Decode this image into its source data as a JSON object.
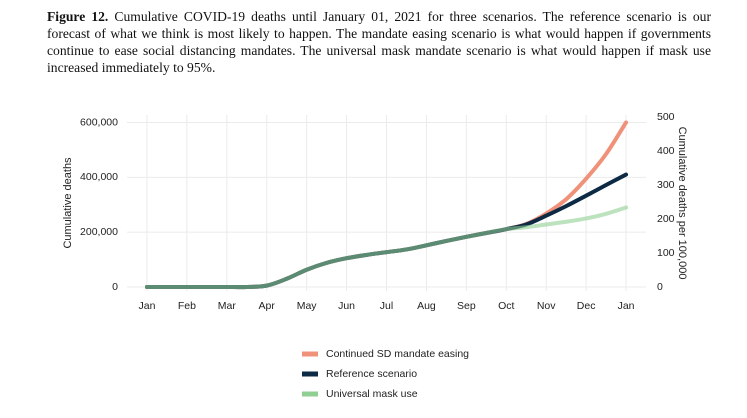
{
  "caption": {
    "label": "Figure 12.",
    "text": "Cumulative COVID-19 deaths until January 01, 2021 for three scenarios. The reference scenario is our forecast of what we think is most likely to happen. The mandate easing scenario is what would happen if governments continue to ease social distancing mandates. The universal mask mandate scenario is what would happen if mask use increased immediately to 95%."
  },
  "chart_data": {
    "type": "line",
    "ylabel": "Cumulative deaths",
    "y2label": "Cumulative deaths per 100,000",
    "x": [
      0,
      0.5,
      1,
      1.5,
      2,
      2.5,
      3,
      3.5,
      4,
      4.5,
      5,
      5.5,
      6,
      6.5,
      7,
      7.5,
      8,
      8.5,
      9,
      9.5,
      10,
      10.5,
      11,
      11.5,
      12
    ],
    "xlim": [
      -0.5,
      12.5
    ],
    "xticks": [
      {
        "value": 0,
        "label": "Jan"
      },
      {
        "value": 1,
        "label": "Feb"
      },
      {
        "value": 2,
        "label": "Mar"
      },
      {
        "value": 3,
        "label": "Apr"
      },
      {
        "value": 4,
        "label": "May"
      },
      {
        "value": 5,
        "label": "Jun"
      },
      {
        "value": 6,
        "label": "Jul"
      },
      {
        "value": 7,
        "label": "Aug"
      },
      {
        "value": 8,
        "label": "Sep"
      },
      {
        "value": 9,
        "label": "Oct"
      },
      {
        "value": 10,
        "label": "Nov"
      },
      {
        "value": 11,
        "label": "Dec"
      },
      {
        "value": 12,
        "label": "Jan"
      }
    ],
    "ylim": [
      0,
      620000
    ],
    "yticks": [
      0,
      {
        "value": 200000,
        "label": "200,000"
      },
      {
        "value": 400000,
        "label": "400,000"
      },
      {
        "value": 600000,
        "label": "600,000"
      }
    ],
    "y2lim": [
      0,
      500
    ],
    "y2ticks": [
      0,
      100,
      200,
      300,
      400,
      500
    ],
    "grid": true,
    "series": [
      {
        "name": "Continued SD mandate easing",
        "color": "#f0917a",
        "values": [
          0,
          0,
          0,
          0,
          0,
          100,
          5000,
          30000,
          63000,
          88000,
          105000,
          117000,
          127000,
          137000,
          152000,
          168000,
          183000,
          197000,
          211000,
          230000,
          268000,
          320000,
          395000,
          485000,
          600000
        ]
      },
      {
        "name": "Reference scenario",
        "color": "#0d2a45",
        "values": [
          0,
          0,
          0,
          0,
          0,
          100,
          5000,
          30000,
          63000,
          88000,
          105000,
          117000,
          127000,
          137000,
          152000,
          168000,
          183000,
          197000,
          211000,
          228000,
          260000,
          295000,
          333000,
          372000,
          410000
        ]
      },
      {
        "name": "Universal mask use",
        "color": "#8fcf92",
        "values": [
          0,
          0,
          0,
          0,
          0,
          100,
          5000,
          30000,
          63000,
          88000,
          105000,
          117000,
          127000,
          137000,
          152000,
          168000,
          183000,
          197000,
          211000,
          218000,
          228000,
          238000,
          250000,
          267000,
          290000
        ]
      }
    ]
  }
}
